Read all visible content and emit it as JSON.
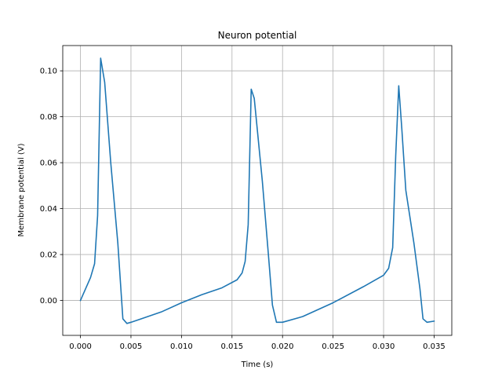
{
  "chart_data": {
    "type": "line",
    "title": "Neuron potential",
    "xlabel": "Time (s)",
    "ylabel": "Membrane potential (V)",
    "xlim": [
      -0.00175,
      0.03675
    ],
    "ylim": [
      -0.0152,
      0.111
    ],
    "grid": true,
    "x_ticks": [
      0.0,
      0.005,
      0.01,
      0.015,
      0.02,
      0.025,
      0.03,
      0.035
    ],
    "x_tick_labels": [
      "0.000",
      "0.005",
      "0.010",
      "0.015",
      "0.020",
      "0.025",
      "0.030",
      "0.035"
    ],
    "y_ticks": [
      0.0,
      0.02,
      0.04,
      0.06,
      0.08,
      0.1
    ],
    "y_tick_labels": [
      "0.00",
      "0.02",
      "0.04",
      "0.06",
      "0.08",
      "0.10"
    ],
    "series": [
      {
        "color": "#1f77b4",
        "x": [
          0.0,
          0.0005,
          0.001,
          0.0014,
          0.0017,
          0.002,
          0.0024,
          0.003,
          0.0037,
          0.0042,
          0.0046,
          0.005,
          0.006,
          0.008,
          0.01,
          0.012,
          0.014,
          0.0155,
          0.016,
          0.0163,
          0.0166,
          0.0169,
          0.0172,
          0.018,
          0.0186,
          0.019,
          0.0194,
          0.02,
          0.022,
          0.025,
          0.028,
          0.03,
          0.0305,
          0.0309,
          0.0312,
          0.0315,
          0.0318,
          0.0322,
          0.033,
          0.0336,
          0.0339,
          0.0343,
          0.035
        ],
        "y": [
          0.0,
          0.005,
          0.01,
          0.016,
          0.037,
          0.1055,
          0.095,
          0.06,
          0.025,
          -0.008,
          -0.01,
          -0.0095,
          -0.008,
          -0.005,
          -0.001,
          0.0025,
          0.0055,
          0.009,
          0.012,
          0.017,
          0.033,
          0.092,
          0.088,
          0.052,
          0.02,
          -0.002,
          -0.0095,
          -0.0095,
          -0.007,
          -0.001,
          0.006,
          0.011,
          0.014,
          0.023,
          0.063,
          0.0935,
          0.075,
          0.048,
          0.025,
          0.005,
          -0.008,
          -0.0095,
          -0.009
        ]
      }
    ]
  }
}
